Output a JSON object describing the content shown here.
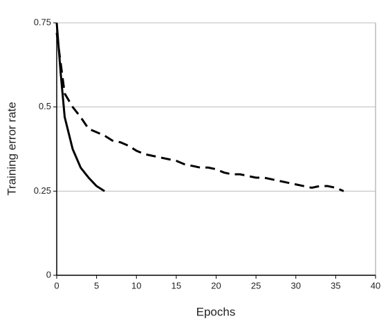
{
  "chart_data": {
    "type": "line",
    "xlabel": "Epochs",
    "ylabel": "Training error rate",
    "xlim": [
      0,
      40
    ],
    "xticks": [
      0,
      5,
      10,
      15,
      20,
      25,
      30,
      35,
      40
    ],
    "ylim": [
      0,
      0.75
    ],
    "yticks": [
      0,
      0.25,
      0.5,
      0.75
    ],
    "grid": true,
    "series": [
      {
        "color": "#000000",
        "dash": false,
        "x": [
          0,
          0.5,
          1,
          2,
          3,
          4,
          5,
          6
        ],
        "values": [
          0.75,
          0.6,
          0.47,
          0.375,
          0.32,
          0.29,
          0.265,
          0.25
        ]
      },
      {
        "color": "#000000",
        "dash": true,
        "x": [
          0,
          1,
          2,
          3,
          4,
          5,
          6,
          7,
          8,
          9,
          10,
          11,
          12,
          13,
          14,
          15,
          16,
          17,
          18,
          19,
          20,
          21,
          22,
          23,
          24,
          25,
          26,
          27,
          28,
          29,
          30,
          31,
          32,
          33,
          34,
          35,
          36
        ],
        "values": [
          0.72,
          0.54,
          0.5,
          0.47,
          0.435,
          0.425,
          0.415,
          0.4,
          0.395,
          0.385,
          0.37,
          0.36,
          0.355,
          0.35,
          0.345,
          0.34,
          0.33,
          0.325,
          0.32,
          0.32,
          0.315,
          0.305,
          0.3,
          0.3,
          0.295,
          0.29,
          0.29,
          0.285,
          0.28,
          0.275,
          0.27,
          0.265,
          0.26,
          0.265,
          0.265,
          0.26,
          0.25
        ]
      }
    ]
  }
}
